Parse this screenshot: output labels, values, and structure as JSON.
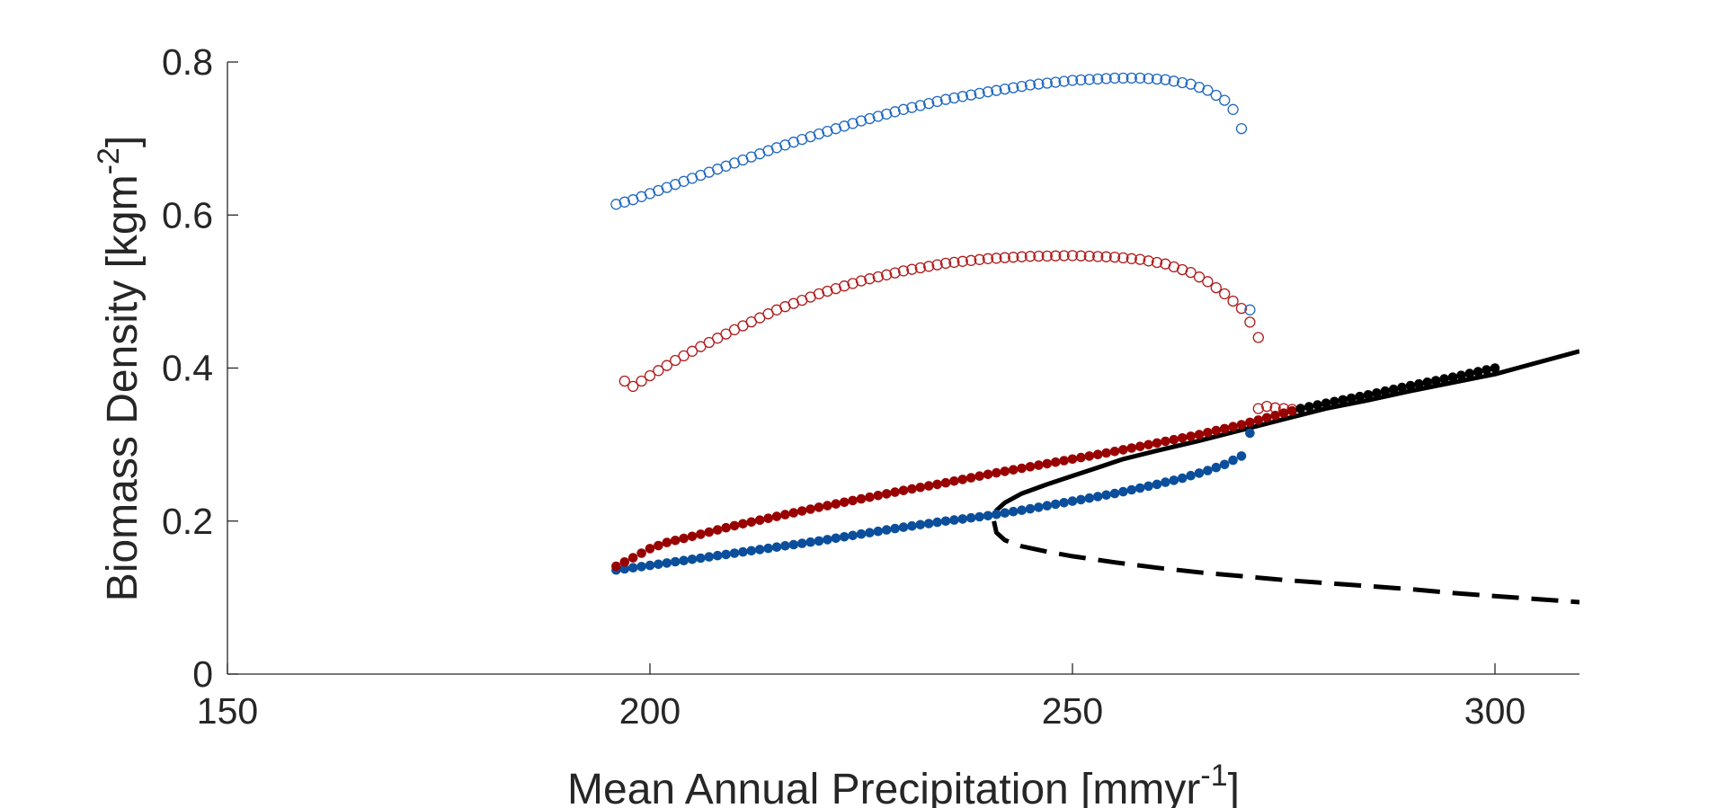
{
  "chart_data": {
    "type": "scatter",
    "title": "",
    "xlabel": "Mean Annual Precipitation [mmyr",
    "xlabel_sup": "-1",
    "xlabel_end": "]",
    "ylabel": "Biomass Density [kgm",
    "ylabel_sup": "-2",
    "ylabel_end": "]",
    "xlim": [
      150,
      310
    ],
    "ylim": [
      0,
      0.8
    ],
    "xticks": [
      "150",
      "200",
      "250",
      "300"
    ],
    "yticks": [
      "0",
      "0.2",
      "0.4",
      "0.6",
      "0.8"
    ],
    "xtick_values": [
      150,
      200,
      250,
      300
    ],
    "ytick_values": [
      0,
      0.2,
      0.4,
      0.6,
      0.8
    ],
    "grid": false,
    "legend": "none",
    "colors": {
      "blue": "#0b4f9c",
      "red": "#990000",
      "black": "#000000",
      "axis": "#262626"
    },
    "series": [
      {
        "style": "open-circle",
        "color": "#1f67c2",
        "x": [
          196,
          198,
          200,
          205,
          210,
          215,
          220,
          225,
          230,
          235,
          240,
          245,
          250,
          255,
          258,
          261,
          264,
          266,
          268,
          269,
          270
        ],
        "y": [
          0.614,
          0.62,
          0.628,
          0.648,
          0.668,
          0.688,
          0.706,
          0.723,
          0.738,
          0.751,
          0.761,
          0.77,
          0.776,
          0.779,
          0.779,
          0.777,
          0.771,
          0.763,
          0.75,
          0.738,
          0.713
        ]
      },
      {
        "style": "open-circle",
        "color": "#b01b1b",
        "x": [
          197,
          198,
          200,
          203,
          206,
          210,
          215,
          220,
          225,
          230,
          235,
          240,
          245,
          250,
          255,
          258,
          261,
          264,
          266,
          268,
          270,
          271,
          272
        ],
        "y": [
          0.383,
          0.376,
          0.39,
          0.41,
          0.428,
          0.45,
          0.476,
          0.497,
          0.514,
          0.527,
          0.537,
          0.543,
          0.546,
          0.547,
          0.545,
          0.542,
          0.536,
          0.525,
          0.513,
          0.497,
          0.478,
          0.46,
          0.44
        ]
      },
      {
        "style": "open-circle",
        "color": "#1f67c2",
        "x": [
          271
        ],
        "y": [
          0.476
        ]
      },
      {
        "style": "open-circle",
        "color": "#b01b1b",
        "x": [
          272,
          273,
          274,
          275,
          276
        ],
        "y": [
          0.347,
          0.35,
          0.348,
          0.347,
          0.346
        ]
      },
      {
        "style": "filled-dot",
        "color": "#0b4f9c",
        "x": [
          196,
          200,
          205,
          210,
          215,
          220,
          225,
          230,
          235,
          240,
          245,
          250,
          255,
          260,
          263,
          266,
          268,
          270
        ],
        "y": [
          0.136,
          0.142,
          0.15,
          0.158,
          0.166,
          0.174,
          0.183,
          0.192,
          0.2,
          0.207,
          0.216,
          0.226,
          0.236,
          0.248,
          0.256,
          0.266,
          0.274,
          0.285
        ]
      },
      {
        "style": "filled-dot",
        "color": "#0b4f9c",
        "x": [
          271
        ],
        "y": [
          0.315
        ]
      },
      {
        "style": "filled-dot",
        "color": "#990000",
        "x": [
          196,
          198,
          200,
          202,
          205,
          210,
          215,
          220,
          225,
          230,
          235,
          240,
          245,
          250,
          255,
          260,
          265,
          270,
          273,
          276
        ],
        "y": [
          0.141,
          0.152,
          0.164,
          0.172,
          0.18,
          0.194,
          0.206,
          0.218,
          0.229,
          0.24,
          0.25,
          0.261,
          0.271,
          0.281,
          0.291,
          0.302,
          0.313,
          0.326,
          0.335,
          0.344
        ]
      },
      {
        "style": "filled-dot",
        "color": "#000000",
        "x": [
          277,
          280,
          285,
          290,
          295,
          300
        ],
        "y": [
          0.347,
          0.354,
          0.365,
          0.377,
          0.388,
          0.4
        ]
      },
      {
        "style": "solid-line",
        "color": "#000000",
        "x": [
          240.7,
          241,
          242,
          244,
          247,
          250,
          253,
          256,
          260,
          265,
          270,
          275,
          280,
          285,
          290,
          295,
          300,
          305,
          310
        ],
        "y": [
          0.205,
          0.214,
          0.224,
          0.236,
          0.248,
          0.259,
          0.27,
          0.281,
          0.292,
          0.305,
          0.319,
          0.333,
          0.347,
          0.358,
          0.37,
          0.381,
          0.392,
          0.407,
          0.422
        ]
      },
      {
        "style": "dashed-line",
        "color": "#000000",
        "x": [
          240.7,
          241,
          242,
          244,
          247,
          250,
          255,
          260,
          265,
          270,
          275,
          280,
          285,
          290,
          295,
          300,
          305,
          310
        ],
        "y": [
          0.2,
          0.185,
          0.175,
          0.167,
          0.16,
          0.154,
          0.146,
          0.139,
          0.133,
          0.128,
          0.123,
          0.119,
          0.115,
          0.111,
          0.106,
          0.102,
          0.098,
          0.094
        ]
      }
    ]
  }
}
